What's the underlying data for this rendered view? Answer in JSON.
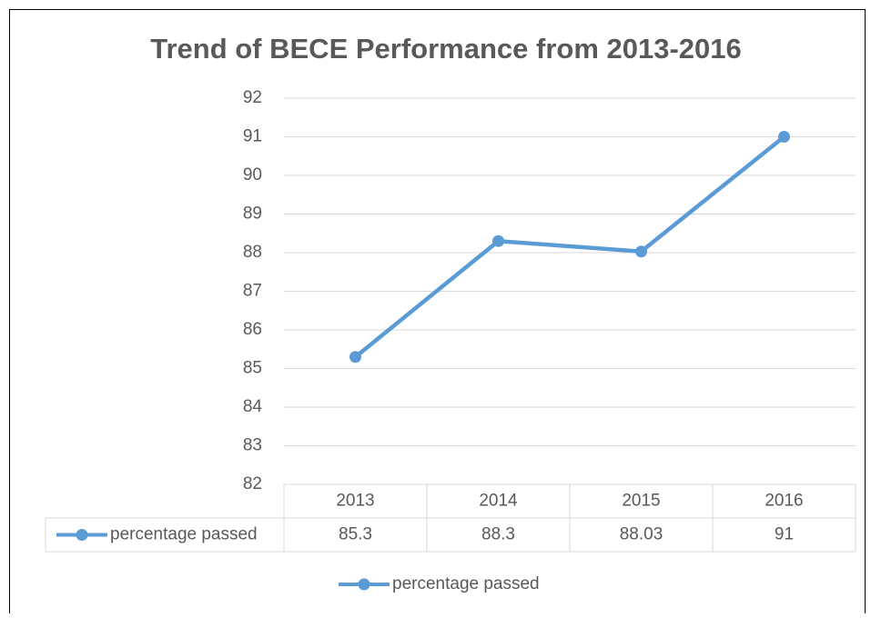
{
  "chart_data": {
    "type": "line",
    "title": "Trend of BECE Performance from 2013-2016",
    "categories": [
      "2013",
      "2014",
      "2015",
      "2016"
    ],
    "series": [
      {
        "name": "percentage passed",
        "color": "#5b9bd5",
        "values": [
          85.3,
          88.3,
          88.03,
          91
        ]
      }
    ],
    "ylim": [
      82,
      92
    ],
    "yticks": [
      82,
      83,
      84,
      85,
      86,
      87,
      88,
      89,
      90,
      91,
      92
    ],
    "grid": true
  }
}
